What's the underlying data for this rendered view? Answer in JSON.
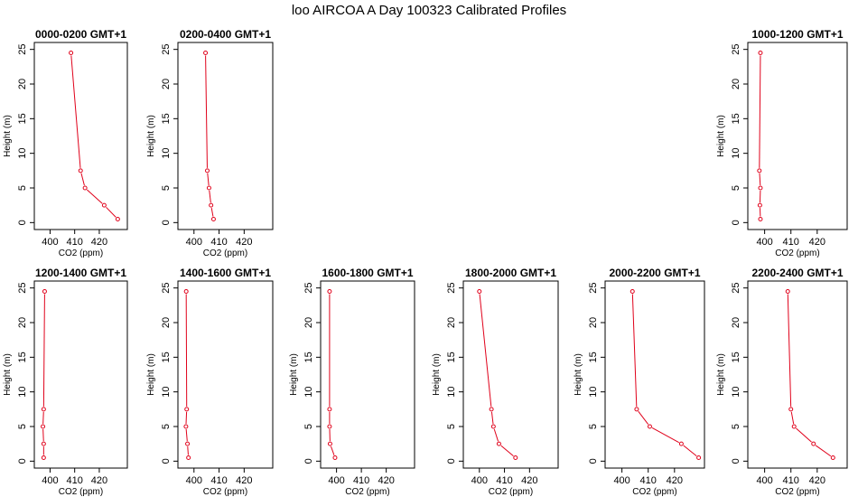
{
  "page": {
    "title": "loo AIRCOA A  Day 100323  Calibrated Profiles"
  },
  "colors": {
    "series": "#e0001a",
    "axis": "#000000",
    "background": "#ffffff"
  },
  "chart_data": [
    {
      "type": "line",
      "panel": "0000-0200",
      "title": "0000-0200 GMT+1",
      "xlabel": "CO2 (ppm)",
      "ylabel": "Height (m)",
      "xlim": [
        395,
        430
      ],
      "ylim": [
        0,
        25
      ],
      "xticks": [
        400,
        410,
        420
      ],
      "yticks": [
        0,
        5,
        10,
        15,
        20,
        25
      ],
      "grid": false,
      "x": [
        427.5,
        422.0,
        414.2,
        412.4,
        408.5
      ],
      "y": [
        0.5,
        2.5,
        5.0,
        7.5,
        24.5
      ]
    },
    {
      "type": "line",
      "panel": "0200-0400",
      "title": "0200-0400 GMT+1",
      "xlabel": "CO2 (ppm)",
      "ylabel": "Height (m)",
      "xlim": [
        395,
        430
      ],
      "ylim": [
        0,
        25
      ],
      "xticks": [
        400,
        410,
        420
      ],
      "yticks": [
        0,
        5,
        10,
        15,
        20,
        25
      ],
      "grid": false,
      "x": [
        407.8,
        406.8,
        406.0,
        405.3,
        404.6
      ],
      "y": [
        0.5,
        2.5,
        5.0,
        7.5,
        24.5
      ]
    },
    {
      "type": "line",
      "panel": "1000-1200",
      "title": "1000-1200 GMT+1",
      "xlabel": "CO2 (ppm)",
      "ylabel": "Height (m)",
      "xlim": [
        395,
        430
      ],
      "ylim": [
        0,
        25
      ],
      "xticks": [
        400,
        410,
        420
      ],
      "yticks": [
        0,
        5,
        10,
        15,
        20,
        25
      ],
      "grid": false,
      "x": [
        398.4,
        398.2,
        398.4,
        398.0,
        398.4
      ],
      "y": [
        0.5,
        2.5,
        5.0,
        7.5,
        24.5
      ]
    },
    {
      "type": "line",
      "panel": "1200-1400",
      "title": "1200-1400 GMT+1",
      "xlabel": "CO2 (ppm)",
      "ylabel": "Height (m)",
      "xlim": [
        395,
        430
      ],
      "ylim": [
        0,
        25
      ],
      "xticks": [
        400,
        410,
        420
      ],
      "yticks": [
        0,
        5,
        10,
        15,
        20,
        25
      ],
      "grid": false,
      "x": [
        397.4,
        397.4,
        397.1,
        397.4,
        397.8
      ],
      "y": [
        0.5,
        2.5,
        5.0,
        7.5,
        24.5
      ]
    },
    {
      "type": "line",
      "panel": "1400-1600",
      "title": "1400-1600 GMT+1",
      "xlabel": "CO2 (ppm)",
      "ylabel": "Height (m)",
      "xlim": [
        395,
        430
      ],
      "ylim": [
        0,
        25
      ],
      "xticks": [
        400,
        410,
        420
      ],
      "yticks": [
        0,
        5,
        10,
        15,
        20,
        25
      ],
      "grid": false,
      "x": [
        397.8,
        397.4,
        396.8,
        397.1,
        396.9
      ],
      "y": [
        0.5,
        2.5,
        5.0,
        7.5,
        24.5
      ]
    },
    {
      "type": "line",
      "panel": "1600-1800",
      "title": "1600-1800 GMT+1",
      "xlabel": "CO2 (ppm)",
      "ylabel": "Height (m)",
      "xlim": [
        395,
        430
      ],
      "ylim": [
        0,
        25
      ],
      "xticks": [
        400,
        410,
        420
      ],
      "yticks": [
        0,
        5,
        10,
        15,
        20,
        25
      ],
      "grid": false,
      "x": [
        399.4,
        397.4,
        397.2,
        397.2,
        397.2
      ],
      "y": [
        0.5,
        2.5,
        5.0,
        7.5,
        24.5
      ]
    },
    {
      "type": "line",
      "panel": "1800-2000",
      "title": "1800-2000 GMT+1",
      "xlabel": "CO2 (ppm)",
      "ylabel": "Height (m)",
      "xlim": [
        395,
        430
      ],
      "ylim": [
        0,
        25
      ],
      "xticks": [
        400,
        410,
        420
      ],
      "yticks": [
        0,
        5,
        10,
        15,
        20,
        25
      ],
      "grid": false,
      "x": [
        414.4,
        407.8,
        405.6,
        404.8,
        400.0
      ],
      "y": [
        0.5,
        2.5,
        5.0,
        7.5,
        24.5
      ]
    },
    {
      "type": "line",
      "panel": "2000-2200",
      "title": "2000-2200 GMT+1",
      "xlabel": "CO2 (ppm)",
      "ylabel": "Height (m)",
      "xlim": [
        395,
        430
      ],
      "ylim": [
        0,
        25
      ],
      "xticks": [
        400,
        410,
        420
      ],
      "yticks": [
        0,
        5,
        10,
        15,
        20,
        25
      ],
      "grid": false,
      "x": [
        429.2,
        422.6,
        410.6,
        405.6,
        404.0
      ],
      "y": [
        0.5,
        2.5,
        5.0,
        7.5,
        24.5
      ]
    },
    {
      "type": "line",
      "panel": "2200-2400",
      "title": "2200-2400 GMT+1",
      "xlabel": "CO2 (ppm)",
      "ylabel": "Height (m)",
      "xlim": [
        395,
        430
      ],
      "ylim": [
        0,
        25
      ],
      "xticks": [
        400,
        410,
        420
      ],
      "yticks": [
        0,
        5,
        10,
        15,
        20,
        25
      ],
      "grid": false,
      "x": [
        426.0,
        418.6,
        411.2,
        410.0,
        408.8
      ],
      "y": [
        0.5,
        2.5,
        5.0,
        7.5,
        24.5
      ]
    }
  ]
}
